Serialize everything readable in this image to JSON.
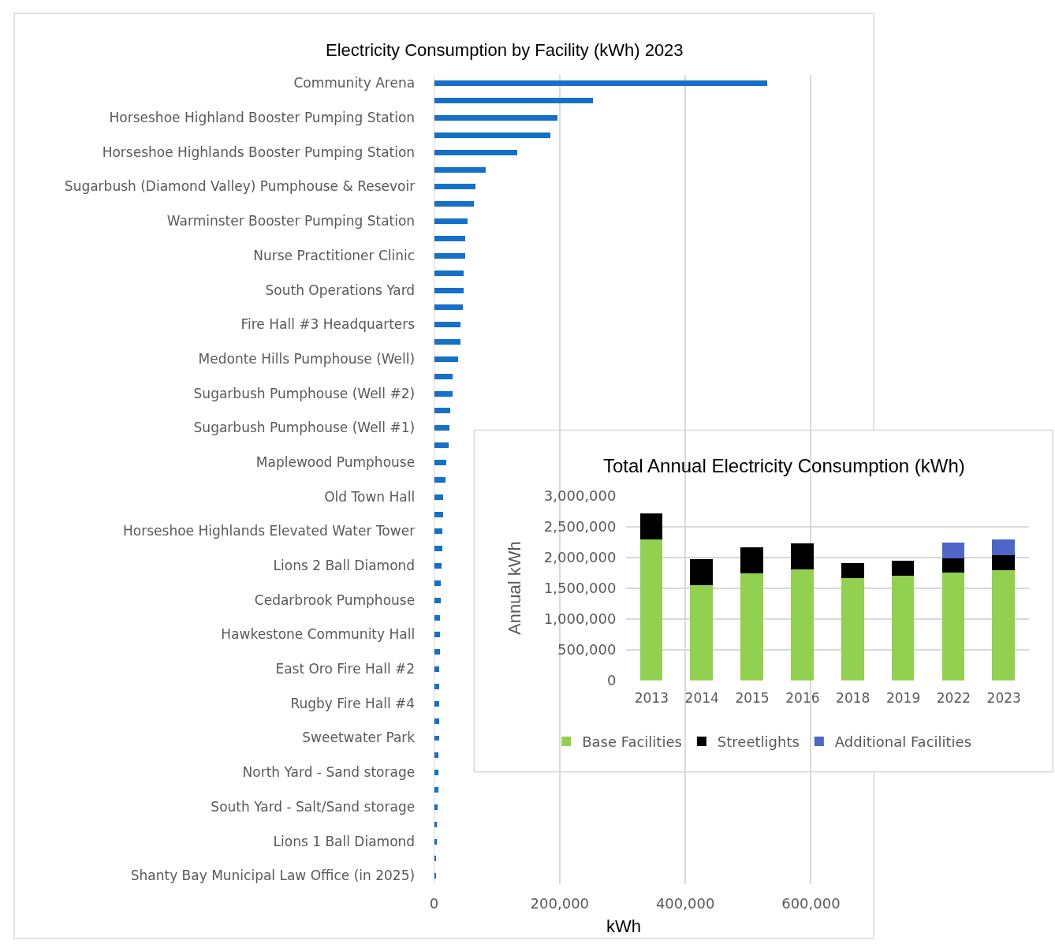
{
  "chart_data": [
    {
      "type": "bar",
      "orientation": "horizontal",
      "title": "Electricity Consumption by Facility (kWh) 2023",
      "xlabel": "kWh",
      "categories": [
        "Community Arena",
        null,
        "Horseshoe Highland Booster Pumping Station",
        null,
        "Horseshoe Highlands Booster Pumping Station",
        null,
        "Sugarbush (Diamond Valley) Pumphouse & Resevoir",
        null,
        "Warminster Booster Pumping Station",
        null,
        "Nurse Practitioner Clinic",
        null,
        "South Operations Yard",
        null,
        "Fire Hall #3 Headquarters",
        null,
        "Medonte Hills Pumphouse (Well)",
        null,
        "Sugarbush Pumphouse (Well #2)",
        null,
        "Sugarbush Pumphouse (Well #1)",
        null,
        "Maplewood Pumphouse",
        null,
        "Old Town Hall",
        null,
        "Horseshoe Highlands Elevated Water Tower",
        null,
        "Lions 2 Ball Diamond",
        null,
        "Cedarbrook Pumphouse",
        null,
        "Hawkestone Community Hall",
        null,
        "East Oro Fire Hall #2",
        null,
        "Rugby Fire Hall #4",
        null,
        "Sweetwater Park",
        null,
        "North Yard - Sand storage",
        null,
        "South Yard - Salt/Sand storage",
        null,
        "Lions 1 Ball Diamond",
        null,
        "Shanty Bay Municipal Law Office (in 2025)"
      ],
      "values": [
        530000,
        252000,
        196000,
        184000,
        132000,
        81000,
        65000,
        63000,
        53000,
        49000,
        49000,
        47000,
        46000,
        45000,
        42000,
        41000,
        38000,
        29000,
        29000,
        25000,
        24000,
        23000,
        19000,
        17000,
        14000,
        14000,
        13000,
        12000,
        11000,
        10000,
        10000,
        9000,
        9000,
        9000,
        8000,
        8000,
        8000,
        8000,
        8000,
        6000,
        6000,
        6000,
        5000,
        4000,
        4000,
        3000,
        3000
      ],
      "color": "#1570c8",
      "xlim": [
        0,
        700000
      ],
      "xticks": [
        0,
        {
          "value": 200000,
          "label": "200,000"
        },
        {
          "value": 400000,
          "label": "400,000"
        },
        {
          "value": 600000,
          "label": "600,000"
        }
      ],
      "grid": "x"
    },
    {
      "type": "bar",
      "stacked": true,
      "title": "Total Annual Electricity Consumption (kWh)",
      "ylabel": "Annual kWh",
      "categories": [
        "2013",
        "2014",
        "2015",
        "2016",
        "2018",
        "2019",
        "2022",
        "2023"
      ],
      "series": [
        {
          "name": "Base Facilities",
          "color": "#92d050",
          "values": [
            2300000,
            1550000,
            1740000,
            1810000,
            1670000,
            1710000,
            1750000,
            1790000
          ]
        },
        {
          "name": "Streetlights",
          "color": "#000000",
          "values": [
            420000,
            420000,
            420000,
            420000,
            240000,
            240000,
            240000,
            250000
          ]
        },
        {
          "name": "Additional Facilities",
          "color": "#4f66c9",
          "values": [
            null,
            null,
            null,
            null,
            null,
            null,
            250000,
            250000
          ]
        }
      ],
      "ylim": [
        0,
        3000000
      ],
      "yticks": [
        0,
        {
          "value": 500000,
          "label": "500,000"
        },
        {
          "value": 1000000,
          "label": "1,000,000"
        },
        {
          "value": 1500000,
          "label": "1,500,000"
        },
        {
          "value": 2000000,
          "label": "2,000,000"
        },
        {
          "value": 2500000,
          "label": "2,500,000"
        },
        {
          "value": 3000000,
          "label": "3,000,000"
        }
      ],
      "grid": "y",
      "legend": "bottom"
    }
  ]
}
